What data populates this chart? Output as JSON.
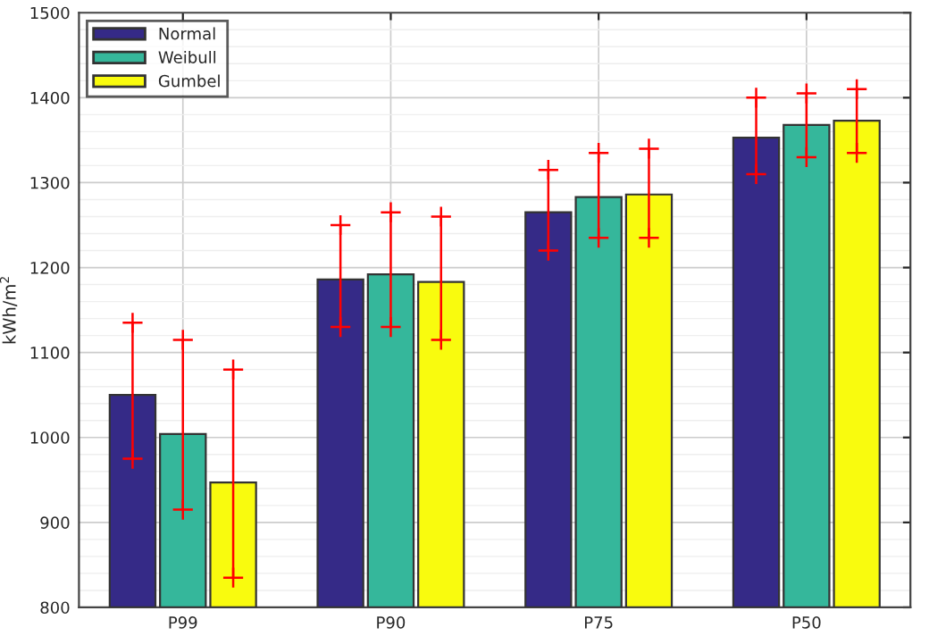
{
  "chart_data": {
    "type": "bar",
    "ylabel": "kWh/m$^{2}$",
    "categories": [
      "P99",
      "P90",
      "P75",
      "P50"
    ],
    "series": [
      {
        "name": "Normal",
        "color": "#352a87",
        "values": [
          1050,
          1186,
          1265,
          1353
        ],
        "errors": [
          [
            975,
            1135
          ],
          [
            1130,
            1250
          ],
          [
            1220,
            1315
          ],
          [
            1310,
            1400
          ]
        ]
      },
      {
        "name": "Weibull",
        "color": "#35b79b",
        "values": [
          1004,
          1192,
          1283,
          1368
        ],
        "errors": [
          [
            915,
            1115
          ],
          [
            1130,
            1265
          ],
          [
            1235,
            1335
          ],
          [
            1330,
            1405
          ]
        ]
      },
      {
        "name": "Gumbel",
        "color": "#f9fb0e",
        "values": [
          947,
          1183,
          1286,
          1373
        ],
        "errors": [
          [
            835,
            1080
          ],
          [
            1115,
            1260
          ],
          [
            1235,
            1340
          ],
          [
            1335,
            1410
          ]
        ]
      }
    ],
    "ylim": [
      800,
      1500
    ],
    "yticks": [
      800,
      900,
      1000,
      1100,
      1200,
      1300,
      1400,
      1500
    ],
    "grid": true,
    "legend": "top left"
  }
}
